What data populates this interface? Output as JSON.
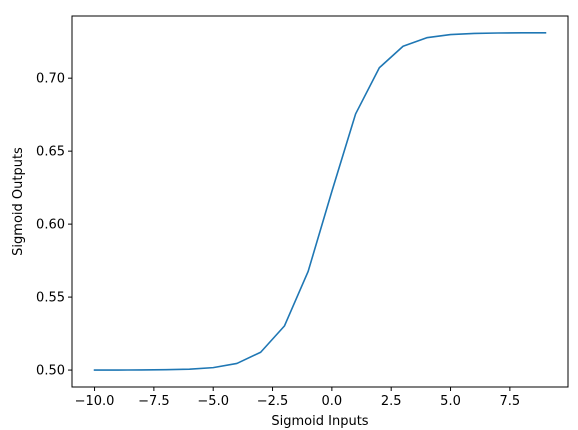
{
  "chart_data": {
    "type": "line",
    "title": "",
    "xlabel": "Sigmoid Inputs",
    "ylabel": "Sigmoid Outputs",
    "xlim": [
      -10.95,
      9.95
    ],
    "ylim": [
      0.4884,
      0.7426
    ],
    "xticks": [
      -10.0,
      -7.5,
      -5.0,
      -2.5,
      0.0,
      2.5,
      5.0,
      7.5
    ],
    "xtick_labels": [
      "−10.0",
      "−7.5",
      "−5.0",
      "−2.5",
      "0.0",
      "2.5",
      "5.0",
      "7.5"
    ],
    "yticks": [
      0.5,
      0.55,
      0.6,
      0.65,
      0.7
    ],
    "ytick_labels": [
      "0.50",
      "0.55",
      "0.60",
      "0.65",
      "0.70"
    ],
    "grid": false,
    "series": [
      {
        "color": "#1f77b4",
        "x": [
          -10,
          -9,
          -8,
          -7,
          -6,
          -5,
          -4,
          -3,
          -2,
          -1,
          0,
          1,
          2,
          3,
          4,
          5,
          6,
          7,
          8,
          9
        ],
        "y": [
          0.50001,
          0.50003,
          0.50008,
          0.50023,
          0.50062,
          0.50168,
          0.50455,
          0.51222,
          0.53018,
          0.56757,
          0.62246,
          0.6755,
          0.70713,
          0.72185,
          0.72772,
          0.72988,
          0.73066,
          0.73095,
          0.73105,
          0.73109
        ]
      }
    ]
  }
}
